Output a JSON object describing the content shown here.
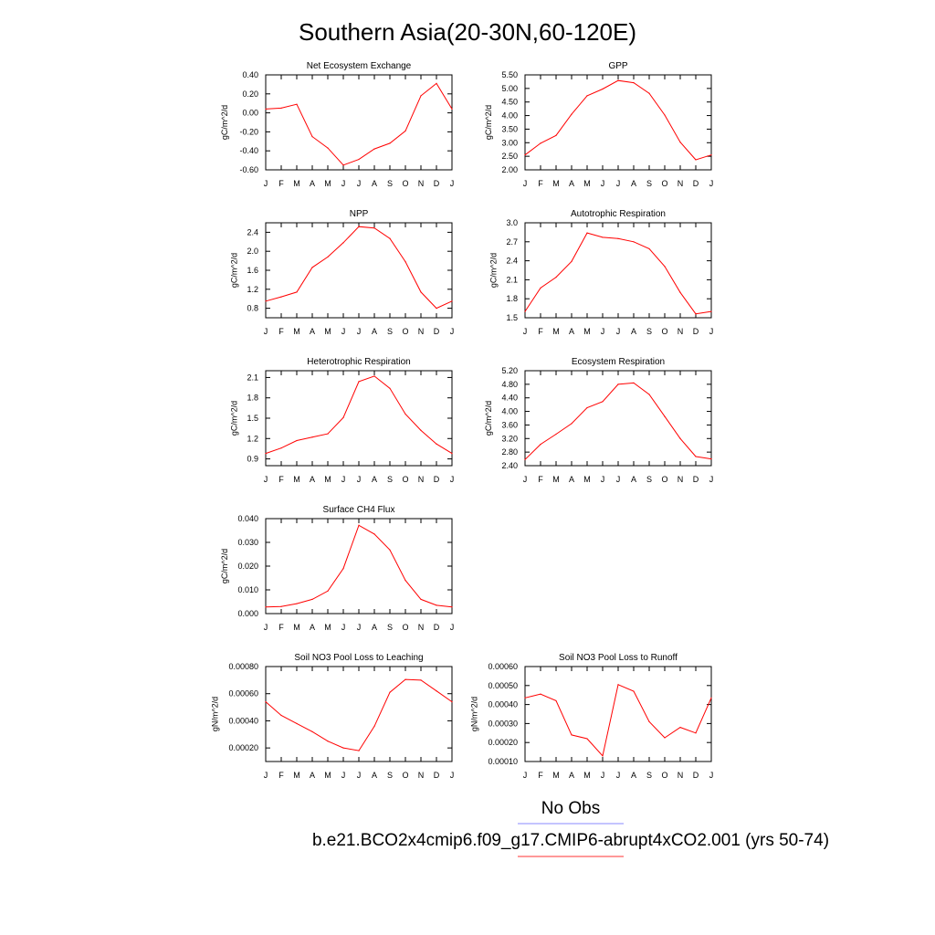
{
  "title": "Southern Asia(20-30N,60-120E)",
  "months": [
    "J",
    "F",
    "M",
    "A",
    "M",
    "J",
    "J",
    "A",
    "S",
    "O",
    "N",
    "D",
    "J"
  ],
  "legend": [
    {
      "label": "No Obs",
      "color": "#8888ff"
    },
    {
      "label": "b.e21.BCO2x4cmip6.f09_g17.CMIP6-abrupt4xCO2.001 (yrs 50-74)",
      "color": "#ff3333"
    }
  ],
  "series_color": "#ff0000",
  "chart_data": [
    {
      "type": "line",
      "title": "Net Ecosystem Exchange",
      "ylabel": "gC/m^2/d",
      "ylim": [
        -0.6,
        0.4
      ],
      "yticks": [
        "-0.60",
        "-0.40",
        "-0.20",
        "0.00",
        "0.20",
        "0.40"
      ],
      "series": [
        {
          "values": [
            0.04,
            0.05,
            0.09,
            -0.25,
            -0.37,
            -0.55,
            -0.49,
            -0.38,
            -0.32,
            -0.19,
            0.18,
            0.31,
            0.04
          ]
        }
      ]
    },
    {
      "type": "line",
      "title": "GPP",
      "ylabel": "gC/m^2/d",
      "ylim": [
        2.0,
        5.5
      ],
      "yticks": [
        "2.00",
        "2.50",
        "3.00",
        "3.50",
        "4.00",
        "4.50",
        "5.00",
        "5.50"
      ],
      "series": [
        {
          "values": [
            2.55,
            2.98,
            3.27,
            4.05,
            4.73,
            4.98,
            5.29,
            5.21,
            4.82,
            4.02,
            3.02,
            2.37,
            2.55
          ]
        }
      ]
    },
    {
      "type": "line",
      "title": "NPP",
      "ylabel": "gC/m^2/d",
      "ylim": [
        0.6,
        2.6
      ],
      "yticks": [
        "0.8",
        "1.2",
        "1.6",
        "2.0",
        "2.4"
      ],
      "series": [
        {
          "values": [
            0.95,
            1.04,
            1.14,
            1.66,
            1.88,
            2.18,
            2.52,
            2.49,
            2.27,
            1.78,
            1.14,
            0.8,
            0.95
          ]
        }
      ]
    },
    {
      "type": "line",
      "title": "Autotrophic Respiration",
      "ylabel": "gC/m^2/d",
      "ylim": [
        1.5,
        3.0
      ],
      "yticks": [
        "1.5",
        "1.8",
        "2.1",
        "2.4",
        "2.7",
        "3.0"
      ],
      "series": [
        {
          "values": [
            1.6,
            1.97,
            2.14,
            2.39,
            2.84,
            2.77,
            2.75,
            2.7,
            2.59,
            2.31,
            1.9,
            1.56,
            1.6
          ]
        }
      ]
    },
    {
      "type": "line",
      "title": "Heterotrophic Respiration",
      "ylabel": "gC/m^2/d",
      "ylim": [
        0.8,
        2.2
      ],
      "yticks": [
        "0.9",
        "1.2",
        "1.5",
        "1.8",
        "2.1"
      ],
      "series": [
        {
          "values": [
            0.98,
            1.06,
            1.17,
            1.22,
            1.27,
            1.51,
            2.04,
            2.12,
            1.94,
            1.56,
            1.32,
            1.12,
            0.98
          ]
        }
      ]
    },
    {
      "type": "line",
      "title": "Ecosystem Respiration",
      "ylabel": "gC/m^2/d",
      "ylim": [
        2.4,
        5.2
      ],
      "yticks": [
        "2.40",
        "2.80",
        "3.20",
        "3.60",
        "4.00",
        "4.40",
        "4.80",
        "5.20"
      ],
      "series": [
        {
          "values": [
            2.58,
            3.03,
            3.33,
            3.64,
            4.11,
            4.29,
            4.8,
            4.84,
            4.5,
            3.85,
            3.2,
            2.67,
            2.6
          ]
        }
      ]
    },
    {
      "type": "line",
      "title": "Surface CH4 Flux",
      "ylabel": "gC/m^2/d",
      "ylim": [
        0.0,
        0.04
      ],
      "yticks": [
        "0.000",
        "0.010",
        "0.020",
        "0.030",
        "0.040"
      ],
      "series": [
        {
          "values": [
            0.0028,
            0.003,
            0.0042,
            0.006,
            0.0095,
            0.019,
            0.0372,
            0.0335,
            0.0268,
            0.014,
            0.006,
            0.0035,
            0.0028
          ]
        }
      ]
    },
    {
      "type": "line",
      "title": "Soil NO3 Pool Loss to Leaching",
      "ylabel": "gN/m^2/d",
      "ylim": [
        0.0001,
        0.0008
      ],
      "yticks": [
        "0.00020",
        "0.00040",
        "0.00060",
        "0.00080"
      ],
      "series": [
        {
          "values": [
            0.00054,
            0.00044,
            0.00038,
            0.00032,
            0.00025,
            0.0002,
            0.00018,
            0.00036,
            0.00061,
            0.000705,
            0.0007,
            0.00062,
            0.00054
          ]
        }
      ]
    },
    {
      "type": "line",
      "title": "Soil NO3 Pool Loss to Runoff",
      "ylabel": "gN/m^2/d",
      "ylim": [
        0.0001,
        0.0006
      ],
      "yticks": [
        "0.00010",
        "0.00020",
        "0.00030",
        "0.00040",
        "0.00050",
        "0.00060"
      ],
      "series": [
        {
          "values": [
            0.000435,
            0.000455,
            0.00042,
            0.00024,
            0.00022,
            0.00013,
            0.000505,
            0.00047,
            0.00031,
            0.000225,
            0.00028,
            0.00025,
            0.000435
          ]
        }
      ]
    }
  ]
}
